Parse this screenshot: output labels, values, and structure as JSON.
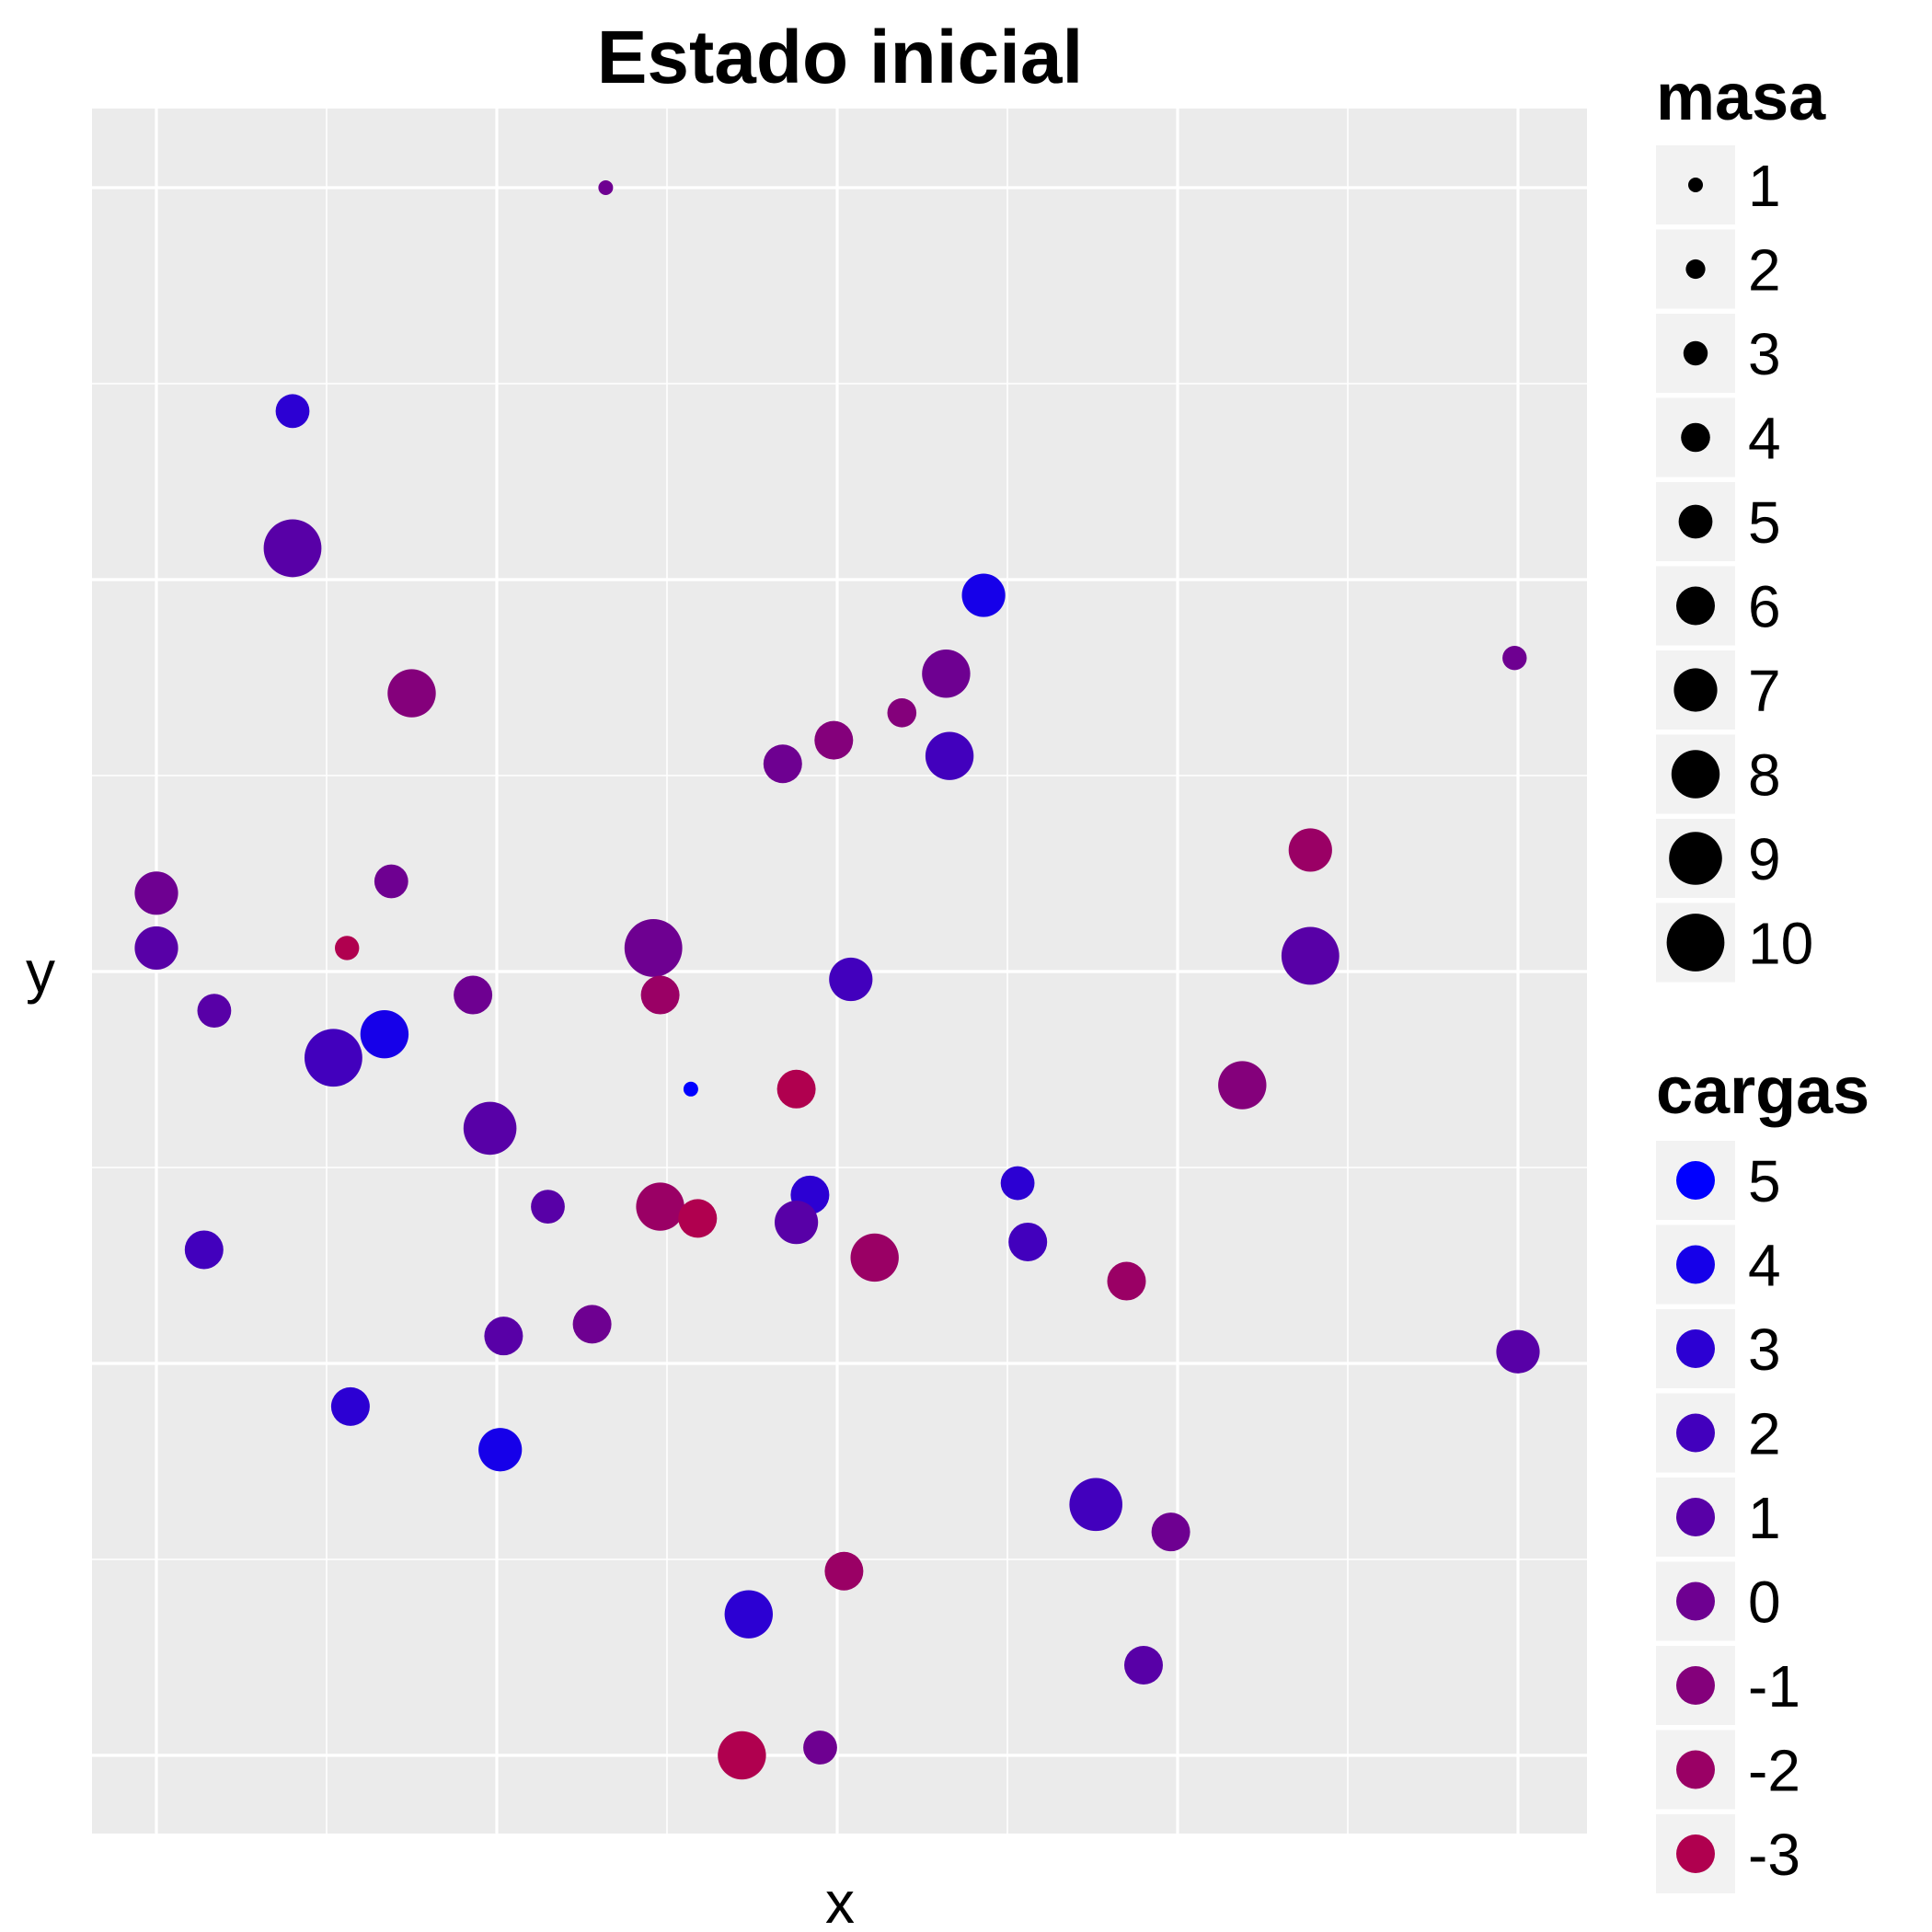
{
  "chart_data": {
    "type": "scatter",
    "title": "Estado inicial",
    "xlabel": "x",
    "ylabel": "y",
    "xlim": [
      -0.2,
      4.2
    ],
    "ylim": [
      -0.2,
      4.2
    ],
    "x_gridlines": [
      0,
      0.5,
      1,
      1.5,
      2,
      2.5,
      3,
      3.5,
      4
    ],
    "y_gridlines": [
      0,
      0.5,
      1,
      1.5,
      2,
      2.5,
      3,
      3.5,
      4
    ],
    "grid": true,
    "legend_position": "right",
    "size_legend": {
      "title": "masa",
      "values": [
        1,
        2,
        3,
        4,
        5,
        6,
        7,
        8,
        9,
        10
      ]
    },
    "color_legend": {
      "title": "cargas",
      "values": [
        5,
        4,
        3,
        2,
        1,
        0,
        -1,
        -2,
        -3
      ],
      "colors": [
        "#0000ff",
        "#1600e9",
        "#2c00d3",
        "#4200bd",
        "#5800a7",
        "#6e0091",
        "#84007b",
        "#9a0065",
        "#b0004f"
      ]
    },
    "points": [
      {
        "x": 1.32,
        "y": 4.0,
        "masa": 1,
        "carga": 0
      },
      {
        "x": 0.4,
        "y": 3.43,
        "masa": 5,
        "carga": 3
      },
      {
        "x": 0.4,
        "y": 3.08,
        "masa": 10,
        "carga": 1
      },
      {
        "x": 2.43,
        "y": 2.96,
        "masa": 7,
        "carga": 4
      },
      {
        "x": 2.32,
        "y": 2.76,
        "masa": 8,
        "carga": 0
      },
      {
        "x": 3.99,
        "y": 2.8,
        "masa": 3,
        "carga": 0
      },
      {
        "x": 0.75,
        "y": 2.71,
        "masa": 8,
        "carga": -1
      },
      {
        "x": 2.19,
        "y": 2.66,
        "masa": 4,
        "carga": -1
      },
      {
        "x": 2.33,
        "y": 2.55,
        "masa": 8,
        "carga": 2
      },
      {
        "x": 1.99,
        "y": 2.59,
        "masa": 6,
        "carga": -1
      },
      {
        "x": 1.84,
        "y": 2.53,
        "masa": 6,
        "carga": 0
      },
      {
        "x": 3.39,
        "y": 2.31,
        "masa": 7,
        "carga": -2
      },
      {
        "x": 0.0,
        "y": 2.2,
        "masa": 7,
        "carga": 0
      },
      {
        "x": 0.69,
        "y": 2.23,
        "masa": 5,
        "carga": 0
      },
      {
        "x": 0.0,
        "y": 2.06,
        "masa": 7,
        "carga": 1
      },
      {
        "x": 0.56,
        "y": 2.06,
        "masa": 3,
        "carga": -3
      },
      {
        "x": 1.46,
        "y": 2.06,
        "masa": 10,
        "carga": 0
      },
      {
        "x": 3.39,
        "y": 2.04,
        "masa": 10,
        "carga": 1
      },
      {
        "x": 2.04,
        "y": 1.98,
        "masa": 7,
        "carga": 2
      },
      {
        "x": 1.48,
        "y": 1.94,
        "masa": 6,
        "carga": -2
      },
      {
        "x": 0.93,
        "y": 1.94,
        "masa": 6,
        "carga": 0
      },
      {
        "x": 0.17,
        "y": 1.9,
        "masa": 5,
        "carga": 1
      },
      {
        "x": 0.67,
        "y": 1.84,
        "masa": 8,
        "carga": 4
      },
      {
        "x": 0.52,
        "y": 1.78,
        "masa": 10,
        "carga": 2
      },
      {
        "x": 1.57,
        "y": 1.7,
        "masa": 1,
        "carga": 5
      },
      {
        "x": 1.88,
        "y": 1.7,
        "masa": 6,
        "carga": -3
      },
      {
        "x": 3.19,
        "y": 1.71,
        "masa": 8,
        "carga": -1
      },
      {
        "x": 0.98,
        "y": 1.6,
        "masa": 9,
        "carga": 1
      },
      {
        "x": 2.53,
        "y": 1.46,
        "masa": 5,
        "carga": 3
      },
      {
        "x": 1.92,
        "y": 1.43,
        "masa": 6,
        "carga": 3
      },
      {
        "x": 1.15,
        "y": 1.4,
        "masa": 5,
        "carga": 1
      },
      {
        "x": 1.48,
        "y": 1.4,
        "masa": 8,
        "carga": -2
      },
      {
        "x": 1.59,
        "y": 1.37,
        "masa": 6,
        "carga": -3
      },
      {
        "x": 1.88,
        "y": 1.36,
        "masa": 7,
        "carga": 1
      },
      {
        "x": 0.14,
        "y": 1.29,
        "masa": 6,
        "carga": 2
      },
      {
        "x": 2.56,
        "y": 1.31,
        "masa": 6,
        "carga": 2
      },
      {
        "x": 2.11,
        "y": 1.27,
        "masa": 8,
        "carga": -2
      },
      {
        "x": 2.85,
        "y": 1.21,
        "masa": 6,
        "carga": -2
      },
      {
        "x": 1.28,
        "y": 1.1,
        "masa": 6,
        "carga": 0
      },
      {
        "x": 1.02,
        "y": 1.07,
        "masa": 6,
        "carga": 1
      },
      {
        "x": 4.0,
        "y": 1.03,
        "masa": 7,
        "carga": 1
      },
      {
        "x": 0.57,
        "y": 0.89,
        "masa": 6,
        "carga": 3
      },
      {
        "x": 1.01,
        "y": 0.78,
        "masa": 7,
        "carga": 4
      },
      {
        "x": 2.76,
        "y": 0.64,
        "masa": 9,
        "carga": 2
      },
      {
        "x": 2.98,
        "y": 0.57,
        "masa": 6,
        "carga": 0
      },
      {
        "x": 2.02,
        "y": 0.47,
        "masa": 6,
        "carga": -2
      },
      {
        "x": 1.74,
        "y": 0.36,
        "masa": 8,
        "carga": 3
      },
      {
        "x": 2.9,
        "y": 0.23,
        "masa": 6,
        "carga": 1
      },
      {
        "x": 1.95,
        "y": 0.02,
        "masa": 5,
        "carga": 0
      },
      {
        "x": 1.72,
        "y": 0.0,
        "masa": 8,
        "carga": -3
      }
    ]
  }
}
